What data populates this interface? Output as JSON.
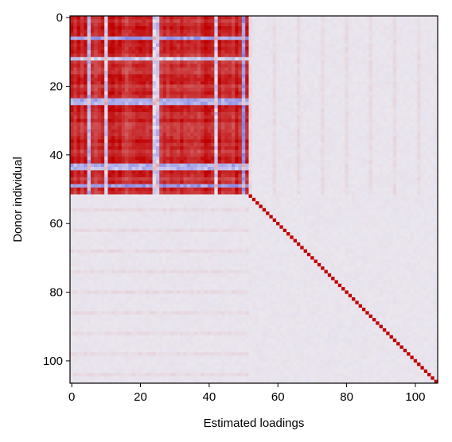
{
  "chart_data": {
    "type": "heatmap",
    "title": "",
    "xlabel": "Estimated loadings",
    "ylabel": "Donor individual",
    "n_rows": 107,
    "n_cols": 107,
    "xlim": [
      -0.5,
      106.5
    ],
    "ylim": [
      106.5,
      -0.5
    ],
    "y_inverted": true,
    "xticks": [
      0,
      20,
      40,
      60,
      80,
      100
    ],
    "yticks": [
      0,
      20,
      40,
      60,
      80,
      100
    ],
    "grid": false,
    "colormap": {
      "name": "diverging",
      "vmin": -1,
      "vmax": 1,
      "stops": [
        "#3b3bd9",
        "#eae6ee",
        "#c00000"
      ]
    },
    "blocks": [
      {
        "name": "correlated-block",
        "rows": [
          0,
          51
        ],
        "cols": [
          0,
          51
        ],
        "mean_value": 0.85,
        "weak_rows": [
          6,
          12,
          24,
          25,
          43,
          44,
          49
        ],
        "weak_cols": [
          5,
          10,
          24,
          25,
          42,
          50
        ]
      },
      {
        "name": "diagonal",
        "rows": [
          52,
          106
        ],
        "cols": [
          52,
          106
        ],
        "mean_value": 1.0
      }
    ],
    "background_value": 0.0
  }
}
